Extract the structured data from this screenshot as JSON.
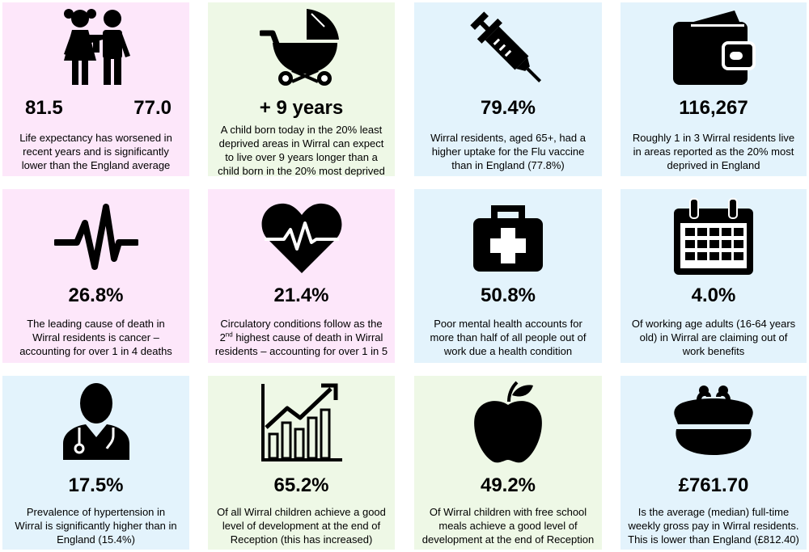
{
  "cards": [
    {
      "icon": "children-icon",
      "stat_left": "81.5",
      "stat_right": "77.0",
      "lines": [
        "Life expectancy has worsened in",
        "recent years and is significantly",
        "lower than the England average"
      ]
    },
    {
      "icon": "pram-icon",
      "stat": "+ 9 years",
      "lines": [
        "A child born today in the 20% least",
        "deprived areas in Wirral can expect",
        "to live over 9 years longer than a",
        "child born in the 20% most deprived"
      ]
    },
    {
      "icon": "syringe-icon",
      "stat": "79.4%",
      "lines": [
        "Wirral residents, aged 65+, had a",
        "higher uptake for the Flu vaccine",
        "than in England (77.8%)"
      ]
    },
    {
      "icon": "wallet-icon",
      "stat": "116,267",
      "lines": [
        "Roughly 1 in 3 Wirral residents live",
        "in areas reported as the 20% most",
        "deprived in England"
      ]
    },
    {
      "icon": "pulse-icon",
      "stat": "26.8%",
      "lines": [
        "The leading cause of death in",
        "Wirral residents is cancer –",
        "accounting for over 1 in 4 deaths"
      ]
    },
    {
      "icon": "heartbeat-icon",
      "stat": "21.4%",
      "line1": "Circulatory conditions follow as the",
      "line2_pre": "2",
      "line2_sup": "nd",
      "line2_post": " highest cause of death in Wirral",
      "line3": "residents – accounting for over 1 in 5"
    },
    {
      "icon": "first-aid-kit-icon",
      "stat": "50.8%",
      "lines": [
        "Poor mental health accounts for",
        "more than half of all people out of",
        "work due a health condition"
      ]
    },
    {
      "icon": "calendar-icon",
      "stat": "4.0%",
      "lines": [
        "Of working age adults (16-64 years",
        "old) in Wirral are claiming out of",
        "work benefits"
      ]
    },
    {
      "icon": "doctor-icon",
      "stat": "17.5%",
      "lines": [
        "Prevalence of hypertension in",
        "Wirral is significantly higher than in",
        "England (15.4%)"
      ]
    },
    {
      "icon": "growth-chart-icon",
      "stat": "65.2%",
      "lines": [
        "Of all Wirral children achieve a good",
        "level of development at the end of",
        "Reception (this has increased)"
      ]
    },
    {
      "icon": "apple-icon",
      "stat": "49.2%",
      "lines": [
        "Of Wirral children with free school",
        "meals achieve a good level of",
        "development at the end of Reception"
      ]
    },
    {
      "icon": "purse-icon",
      "stat": "£761.70",
      "lines": [
        "Is the average (median) full-time",
        "weekly gross pay in Wirral residents.",
        "This is lower than England (£812.40)"
      ]
    }
  ]
}
